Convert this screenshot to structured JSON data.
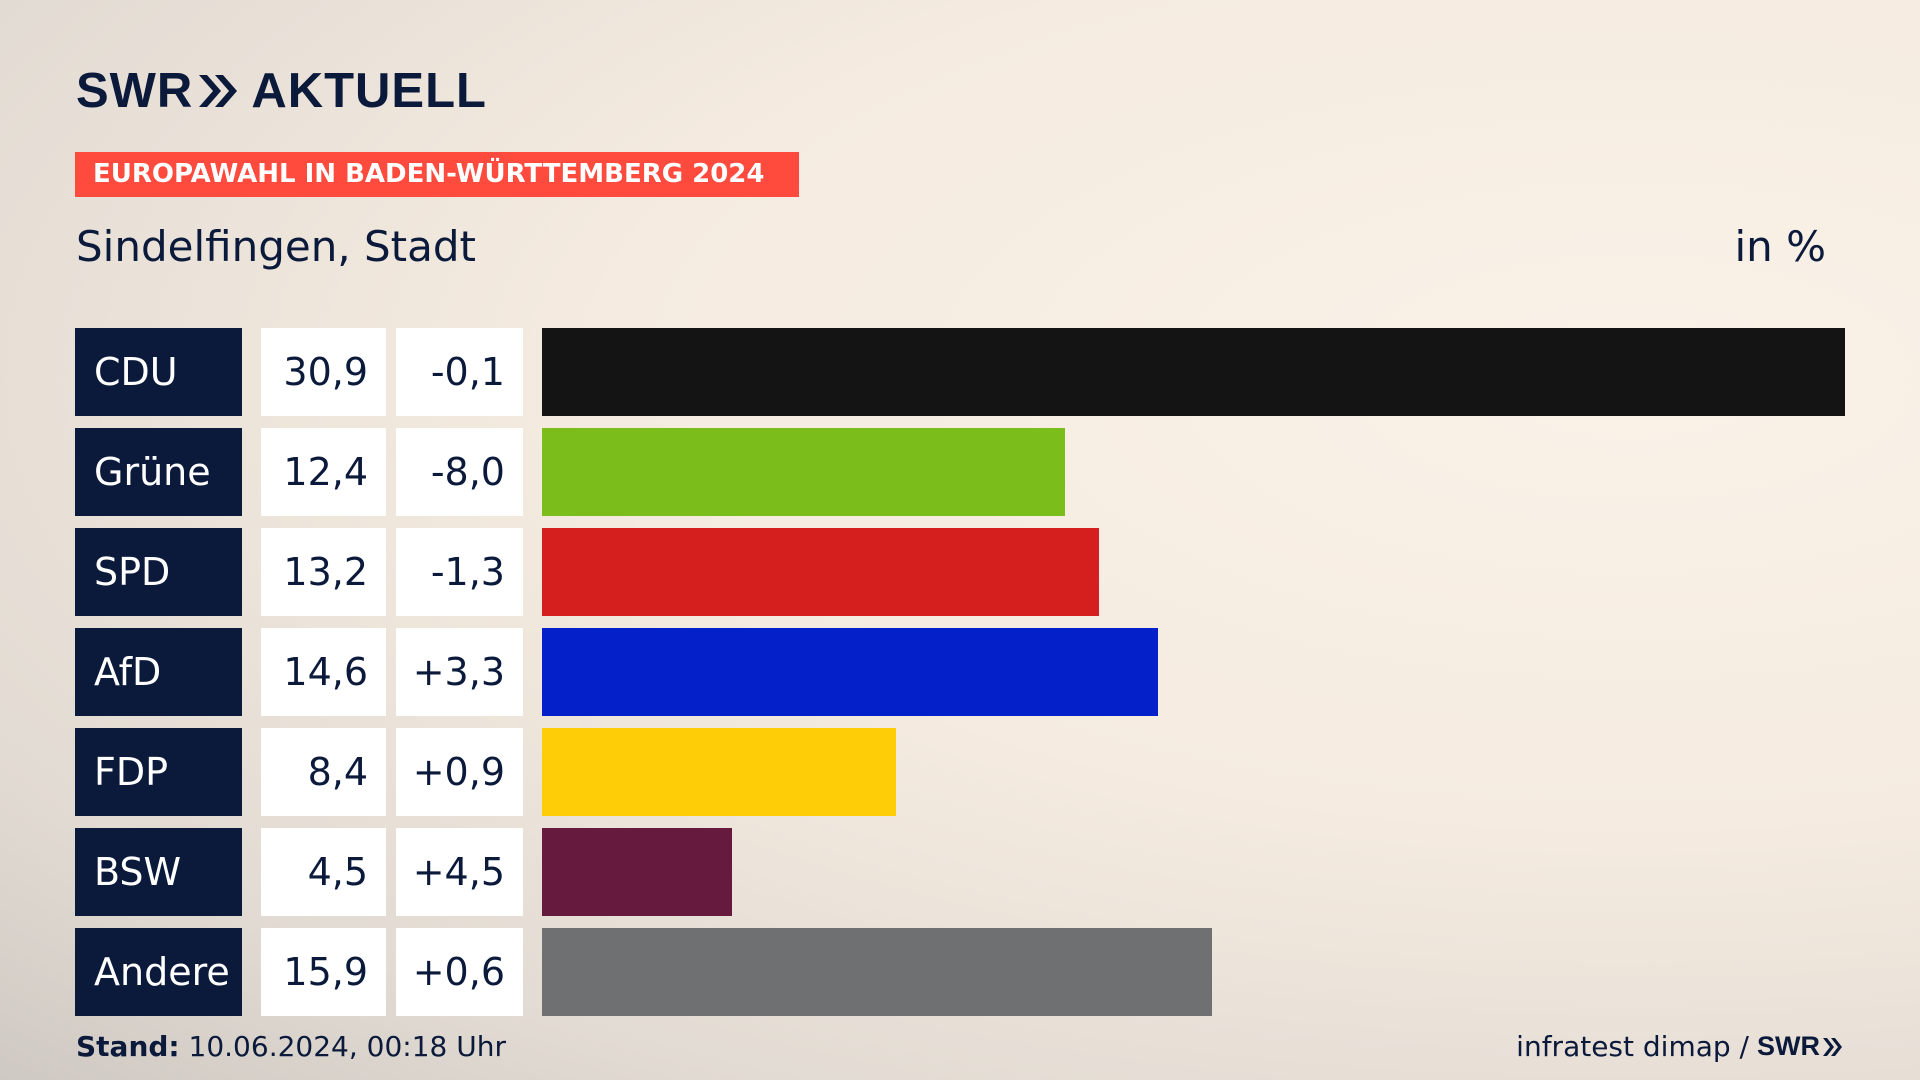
{
  "brand": {
    "name": "SWR",
    "section": "AKTUELL"
  },
  "badge": "EUROPAWAHL IN BADEN-WÜRTTEMBERG 2024",
  "subtitle": "Sindelfingen, Stadt",
  "unit": "in %",
  "footer": {
    "stand_label": "Stand:",
    "stand_value": "10.06.2024, 00:18 Uhr",
    "source": "infratest dimap /",
    "brand": "SWR"
  },
  "chart_data": {
    "type": "bar",
    "orientation": "horizontal",
    "categories": [
      "CDU",
      "Grüne",
      "SPD",
      "AfD",
      "FDP",
      "BSW",
      "Andere"
    ],
    "values": [
      30.9,
      12.4,
      13.2,
      14.6,
      8.4,
      4.5,
      15.9
    ],
    "value_labels": [
      "30,9",
      "12,4",
      "13,2",
      "14,6",
      "8,4",
      "4,5",
      "15,9"
    ],
    "diff_labels": [
      "-0,1",
      "-8,0",
      "-1,3",
      "+3,3",
      "+0,9",
      "+4,5",
      "+0,6"
    ],
    "colors": [
      "#141414",
      "#7bbd1b",
      "#d51f1f",
      "#0320c9",
      "#ffcd07",
      "#661a3d",
      "#6f7072"
    ],
    "xlim": [
      0,
      30.9
    ],
    "grid": false
  }
}
